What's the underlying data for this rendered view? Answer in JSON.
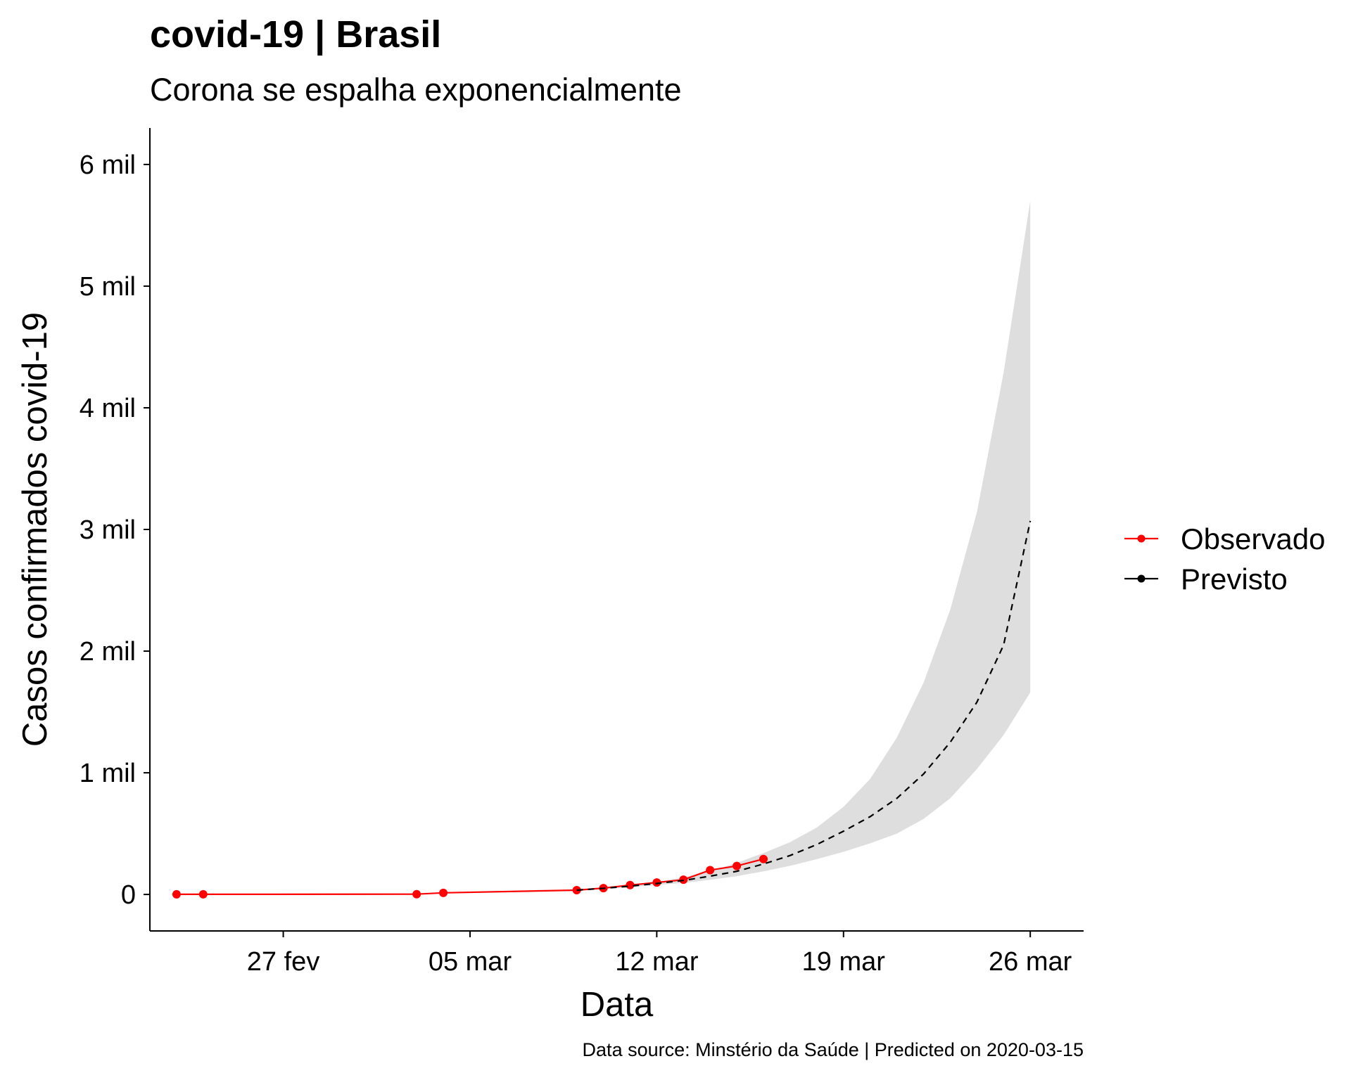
{
  "chart_data": {
    "type": "line",
    "title": "covid-19 | Brasil",
    "subtitle": "Corona se espalha exponencialmente",
    "caption": "Data source: Minstério da Saúde | Predicted on 2020-03-15",
    "xlabel": "Data",
    "ylabel": "Casos confirmados covid-19",
    "x_type": "date",
    "xlim": [
      "2020-02-22",
      "2020-03-28"
    ],
    "ylim": [
      -300,
      6300
    ],
    "x_ticks": [
      {
        "date": "2020-02-27",
        "label": "27 fev"
      },
      {
        "date": "2020-03-05",
        "label": "05 mar"
      },
      {
        "date": "2020-03-12",
        "label": "12 mar"
      },
      {
        "date": "2020-03-19",
        "label": "19 mar"
      },
      {
        "date": "2020-03-26",
        "label": "26 mar"
      }
    ],
    "y_ticks": [
      {
        "value": 0,
        "label": "0"
      },
      {
        "value": 1000,
        "label": "1 mil"
      },
      {
        "value": 2000,
        "label": "2 mil"
      },
      {
        "value": 3000,
        "label": "3 mil"
      },
      {
        "value": 4000,
        "label": "4 mil"
      },
      {
        "value": 5000,
        "label": "5 mil"
      },
      {
        "value": 6000,
        "label": "6 mil"
      }
    ],
    "grid": false,
    "legend_position": "right",
    "series": [
      {
        "name": "Observado",
        "color": "#ff0000",
        "line_style": "solid",
        "markers": true,
        "points": [
          {
            "x": "2020-02-23",
            "y": 1
          },
          {
            "x": "2020-02-24",
            "y": 1
          },
          {
            "x": "2020-03-03",
            "y": 2
          },
          {
            "x": "2020-03-04",
            "y": 13
          },
          {
            "x": "2020-03-09",
            "y": 35
          },
          {
            "x": "2020-03-10",
            "y": 52
          },
          {
            "x": "2020-03-11",
            "y": 77
          },
          {
            "x": "2020-03-12",
            "y": 98
          },
          {
            "x": "2020-03-13",
            "y": 121
          },
          {
            "x": "2020-03-14",
            "y": 200
          },
          {
            "x": "2020-03-15",
            "y": 234
          },
          {
            "x": "2020-03-16",
            "y": 291
          }
        ]
      },
      {
        "name": "Previsto",
        "color": "#000000",
        "line_style": "dashed",
        "markers": false,
        "points": [
          {
            "x": "2020-03-09",
            "y": 35
          },
          {
            "x": "2020-03-10",
            "y": 50
          },
          {
            "x": "2020-03-11",
            "y": 68
          },
          {
            "x": "2020-03-12",
            "y": 90
          },
          {
            "x": "2020-03-13",
            "y": 115
          },
          {
            "x": "2020-03-14",
            "y": 150
          },
          {
            "x": "2020-03-15",
            "y": 190
          },
          {
            "x": "2020-03-16",
            "y": 250
          },
          {
            "x": "2020-03-17",
            "y": 320
          },
          {
            "x": "2020-03-18",
            "y": 410
          },
          {
            "x": "2020-03-19",
            "y": 520
          },
          {
            "x": "2020-03-20",
            "y": 640
          },
          {
            "x": "2020-03-21",
            "y": 790
          },
          {
            "x": "2020-03-22",
            "y": 990
          },
          {
            "x": "2020-03-23",
            "y": 1250
          },
          {
            "x": "2020-03-24",
            "y": 1580
          },
          {
            "x": "2020-03-25",
            "y": 2050
          },
          {
            "x": "2020-03-26",
            "y": 3070
          }
        ]
      }
    ],
    "confidence_band": {
      "color": "#dedede",
      "points": [
        {
          "x": "2020-03-09",
          "low": 33,
          "high": 38
        },
        {
          "x": "2020-03-10",
          "low": 45,
          "high": 56
        },
        {
          "x": "2020-03-11",
          "low": 60,
          "high": 78
        },
        {
          "x": "2020-03-12",
          "low": 78,
          "high": 104
        },
        {
          "x": "2020-03-13",
          "low": 95,
          "high": 140
        },
        {
          "x": "2020-03-14",
          "low": 120,
          "high": 190
        },
        {
          "x": "2020-03-15",
          "low": 150,
          "high": 260
        },
        {
          "x": "2020-03-16",
          "low": 190,
          "high": 340
        },
        {
          "x": "2020-03-17",
          "low": 235,
          "high": 430
        },
        {
          "x": "2020-03-18",
          "low": 290,
          "high": 550
        },
        {
          "x": "2020-03-19",
          "low": 350,
          "high": 720
        },
        {
          "x": "2020-03-20",
          "low": 420,
          "high": 950
        },
        {
          "x": "2020-03-21",
          "low": 500,
          "high": 1290
        },
        {
          "x": "2020-03-22",
          "low": 620,
          "high": 1740
        },
        {
          "x": "2020-03-23",
          "low": 790,
          "high": 2340
        },
        {
          "x": "2020-03-24",
          "low": 1030,
          "high": 3140
        },
        {
          "x": "2020-03-25",
          "low": 1310,
          "high": 4290
        },
        {
          "x": "2020-03-26",
          "low": 1660,
          "high": 5700
        }
      ]
    }
  }
}
